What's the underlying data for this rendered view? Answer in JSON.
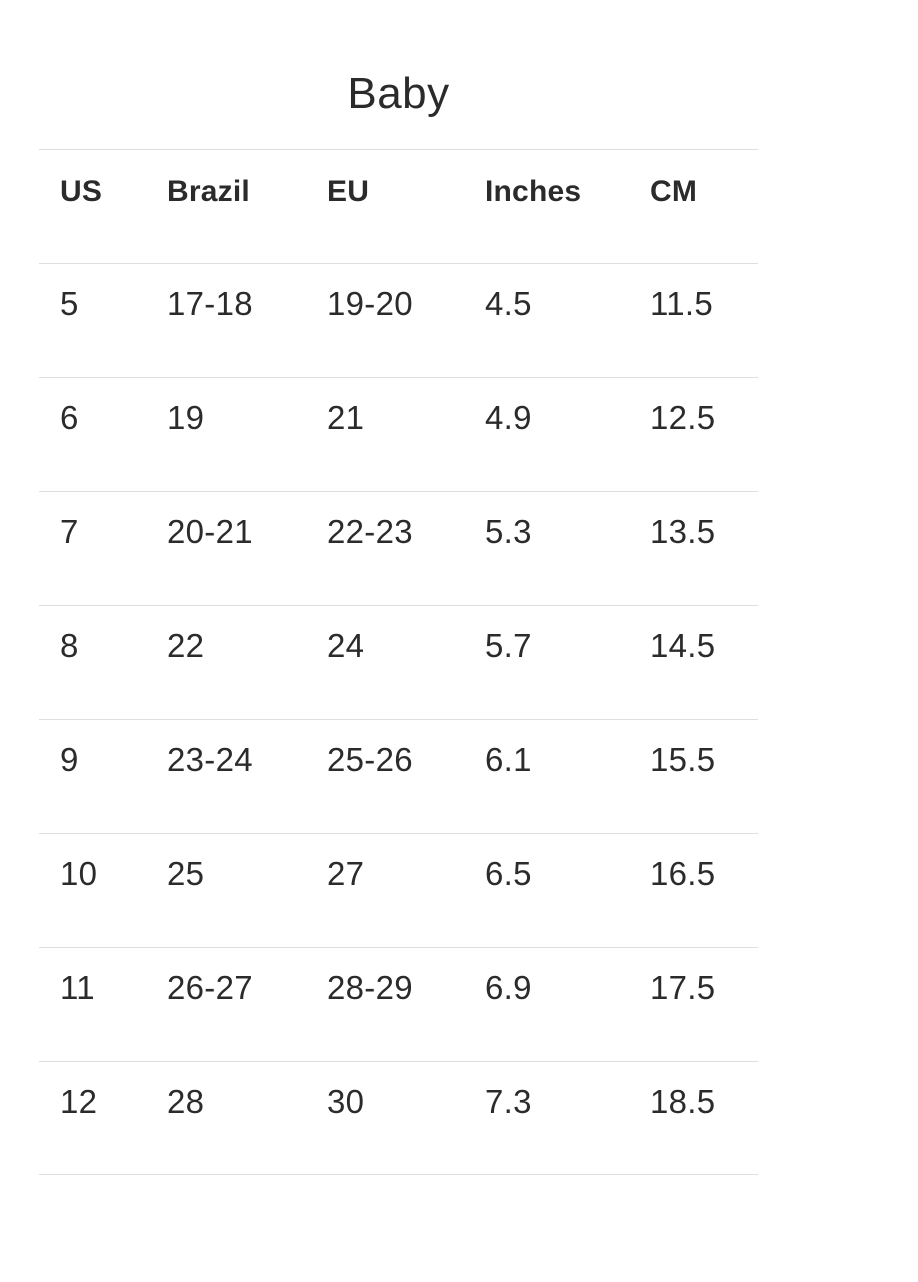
{
  "title": "Baby",
  "table": {
    "columns": [
      "US",
      "Brazil",
      "EU",
      "Inches",
      "CM"
    ],
    "rows": [
      [
        "5",
        "17-18",
        "19-20",
        "4.5",
        "11.5"
      ],
      [
        "6",
        "19",
        "21",
        "4.9",
        "12.5"
      ],
      [
        "7",
        "20-21",
        "22-23",
        "5.3",
        "13.5"
      ],
      [
        "8",
        "22",
        "24",
        "5.7",
        "14.5"
      ],
      [
        "9",
        "23-24",
        "25-26",
        "6.1",
        "15.5"
      ],
      [
        "10",
        "25",
        "27",
        "6.5",
        "16.5"
      ],
      [
        "11",
        "26-27",
        "28-29",
        "6.9",
        "17.5"
      ],
      [
        "12",
        "28",
        "30",
        "7.3",
        "18.5"
      ]
    ]
  },
  "colors": {
    "background": "#ffffff",
    "text": "#2b2b2b",
    "divider": "#dedede"
  }
}
